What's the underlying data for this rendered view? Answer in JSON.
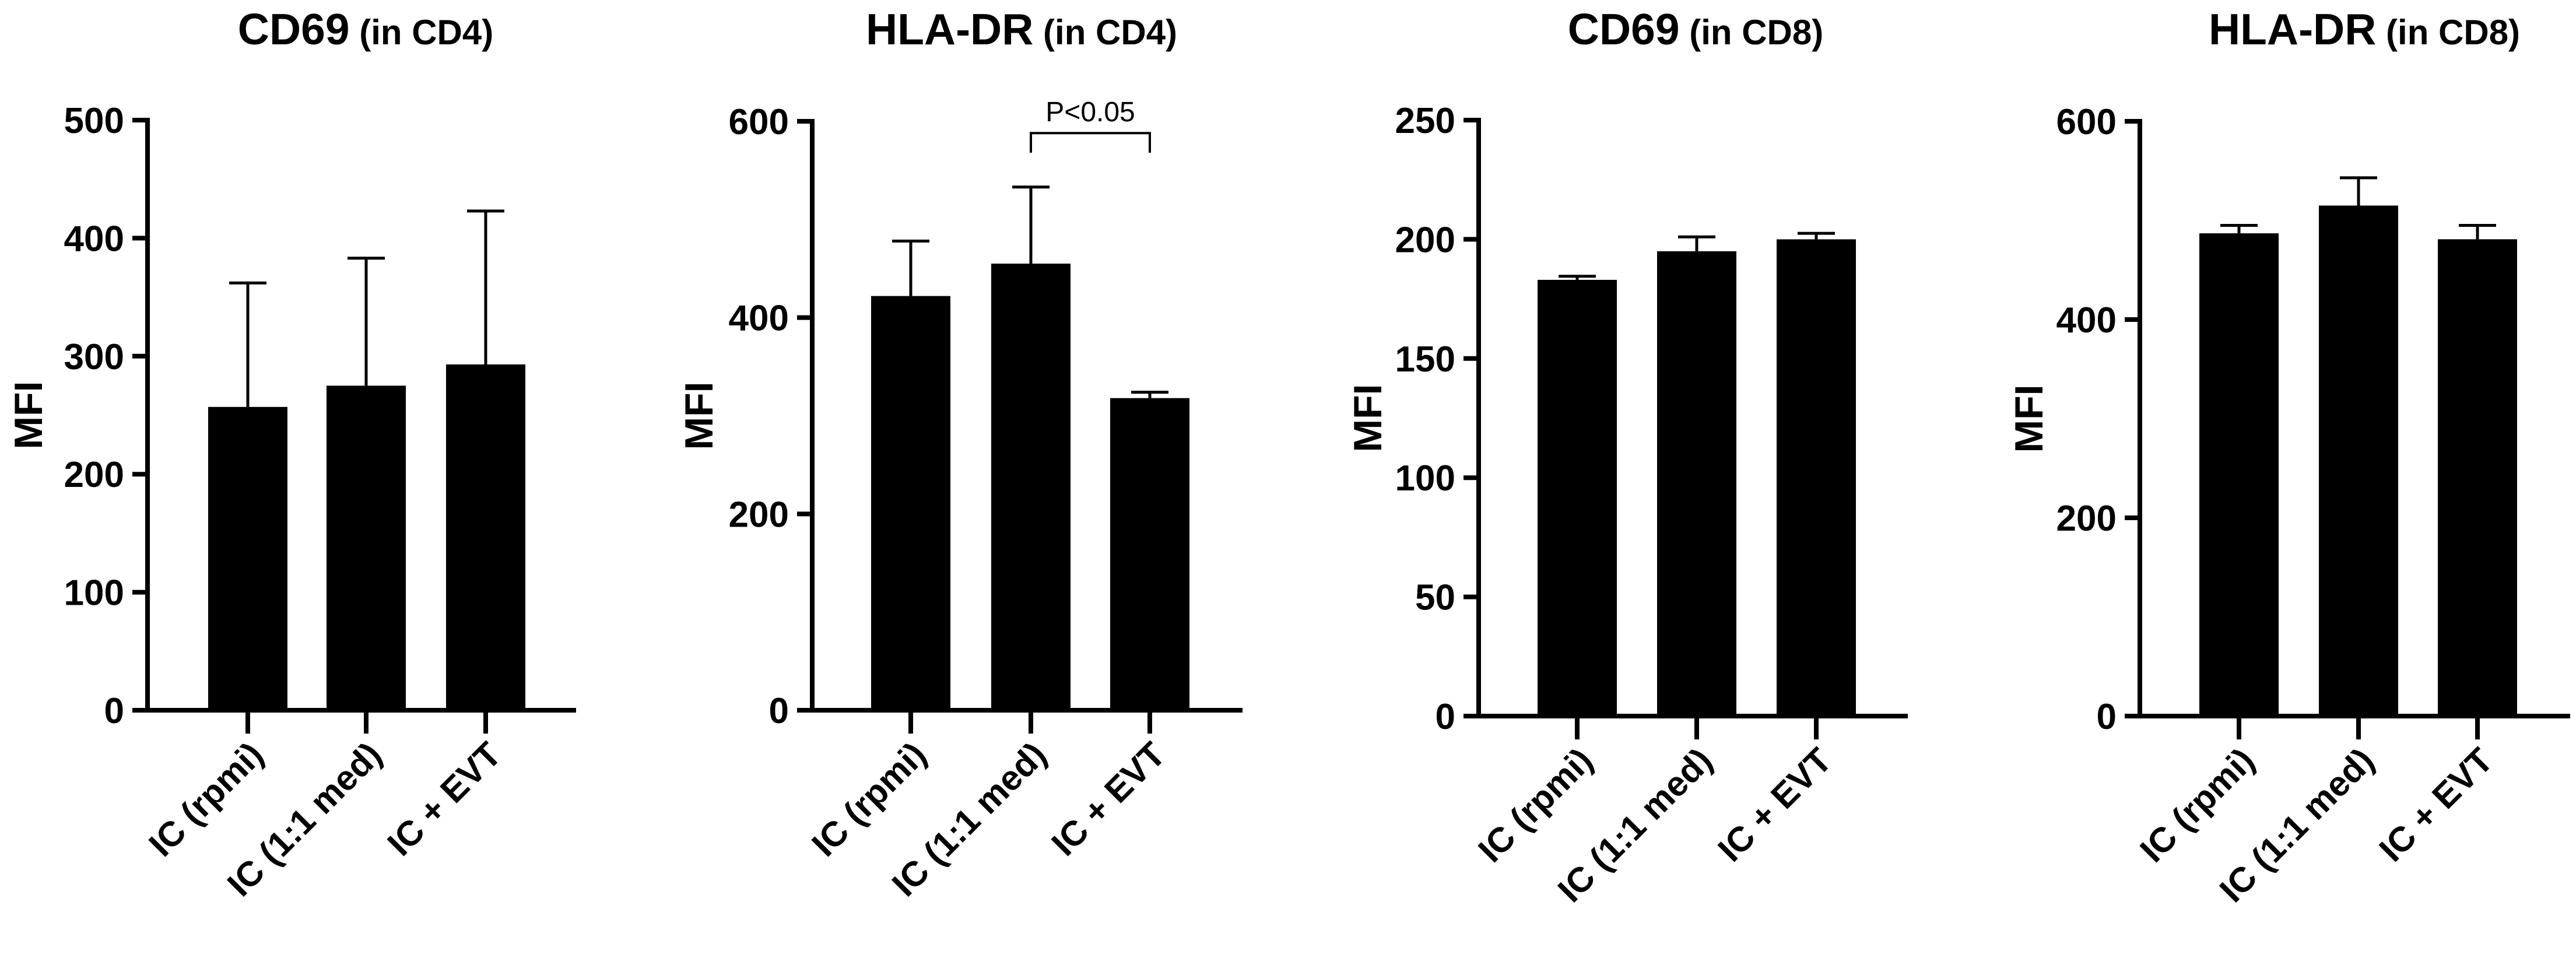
{
  "chart_data": [
    {
      "type": "bar",
      "title": "CD69",
      "title_suffix": "(in CD4)",
      "ylabel": "MFI",
      "ylim": [
        0,
        500
      ],
      "yticks": [
        0,
        100,
        200,
        300,
        400,
        500
      ],
      "categories": [
        "IC (rpmi)",
        "IC (1:1 med)",
        "IC + EVT"
      ],
      "values": [
        257,
        275,
        293
      ],
      "errors": [
        105,
        108,
        130
      ],
      "bar_color": "#000000",
      "annotations": []
    },
    {
      "type": "bar",
      "title": "HLA-DR",
      "title_suffix": "(in CD4)",
      "ylabel": "MFI",
      "ylim": [
        0,
        600
      ],
      "yticks": [
        0,
        200,
        400,
        600
      ],
      "categories": [
        "IC (rpmi)",
        "IC (1:1 med)",
        "IC + EVT"
      ],
      "values": [
        422,
        455,
        318
      ],
      "errors": [
        56,
        78,
        6
      ],
      "bar_color": "#000000",
      "annotations": [
        {
          "type": "significance",
          "from": 1,
          "to": 2,
          "text": "P<0.05",
          "y": 588,
          "drop": 20
        }
      ]
    },
    {
      "type": "bar",
      "title": "CD69",
      "title_suffix": "(in CD8)",
      "ylabel": "MFI",
      "ylim": [
        0,
        250
      ],
      "yticks": [
        0,
        50,
        100,
        150,
        200,
        250
      ],
      "categories": [
        "IC (rpmi)",
        "IC (1:1 med)",
        "IC + EVT"
      ],
      "values": [
        183,
        195,
        200
      ],
      "errors": [
        1.5,
        6,
        2.5
      ],
      "bar_color": "#000000",
      "annotations": []
    },
    {
      "type": "bar",
      "title": "HLA-DR",
      "title_suffix": "(in CD8)",
      "ylabel": "MFI",
      "ylim": [
        0,
        600
      ],
      "yticks": [
        0,
        200,
        400,
        600
      ],
      "categories": [
        "IC (rpmi)",
        "IC (1:1 med)",
        "IC + EVT"
      ],
      "values": [
        487,
        515,
        481
      ],
      "errors": [
        8,
        28,
        14
      ],
      "bar_color": "#000000",
      "annotations": []
    }
  ]
}
